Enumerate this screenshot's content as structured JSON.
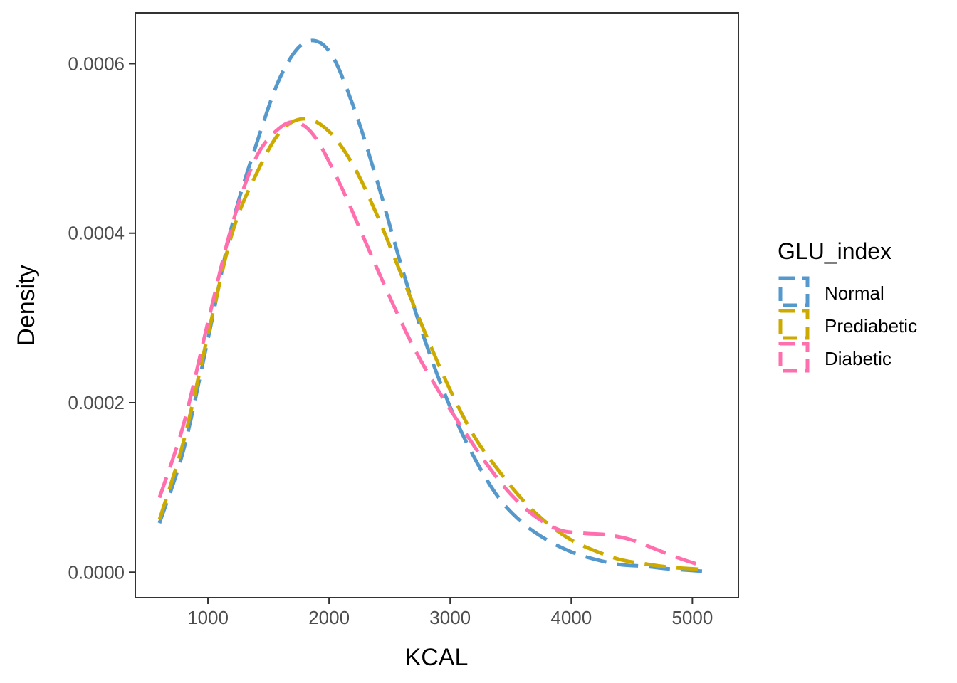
{
  "chart_data": {
    "type": "line",
    "title": "",
    "xlabel": "KCAL",
    "ylabel": "Density",
    "xlim": [
      400,
      5380
    ],
    "ylim": [
      -3e-05,
      0.00066
    ],
    "x_ticks": [
      1000,
      2000,
      3000,
      4000,
      5000
    ],
    "x_tick_labels": [
      "1000",
      "2000",
      "3000",
      "4000",
      "5000"
    ],
    "y_ticks": [
      0,
      0.0002,
      0.0004,
      0.0006
    ],
    "y_tick_labels": [
      "0.0000",
      "0.0002",
      "0.0004",
      "0.0006"
    ],
    "grid": false,
    "legend": {
      "title": "GLU_index",
      "placement": "right"
    },
    "series": [
      {
        "name": "Normal",
        "color": "#5599cc",
        "points": [
          [
            600,
            5.8e-05
          ],
          [
            800,
            0.000145
          ],
          [
            1000,
            0.000275
          ],
          [
            1200,
            0.00041
          ],
          [
            1400,
            0.000505
          ],
          [
            1600,
            0.000585
          ],
          [
            1800,
            0.000625
          ],
          [
            2000,
            0.000615
          ],
          [
            2200,
            0.00055
          ],
          [
            2400,
            0.00046
          ],
          [
            2600,
            0.00036
          ],
          [
            2800,
            0.00027
          ],
          [
            3000,
            0.000195
          ],
          [
            3200,
            0.000135
          ],
          [
            3400,
            8.8e-05
          ],
          [
            3600,
            5.8e-05
          ],
          [
            3800,
            3.8e-05
          ],
          [
            4000,
            2.4e-05
          ],
          [
            4200,
            1.5e-05
          ],
          [
            4400,
            9e-06
          ],
          [
            4600,
            7e-06
          ],
          [
            4800,
            4e-06
          ],
          [
            5000,
            2e-06
          ],
          [
            5100,
            1e-06
          ]
        ]
      },
      {
        "name": "Prediabetic",
        "color": "#ccaa00",
        "points": [
          [
            600,
            6.2e-05
          ],
          [
            800,
            0.000155
          ],
          [
            1000,
            0.00028
          ],
          [
            1200,
            0.0004
          ],
          [
            1400,
            0.00047
          ],
          [
            1600,
            0.00052
          ],
          [
            1800,
            0.000535
          ],
          [
            2000,
            0.00052
          ],
          [
            2200,
            0.00048
          ],
          [
            2400,
            0.00042
          ],
          [
            2600,
            0.00035
          ],
          [
            2800,
            0.00028
          ],
          [
            3000,
            0.000215
          ],
          [
            3200,
            0.00016
          ],
          [
            3400,
            0.00012
          ],
          [
            3600,
            8.5e-05
          ],
          [
            3800,
            5.8e-05
          ],
          [
            4000,
            3.8e-05
          ],
          [
            4200,
            2.5e-05
          ],
          [
            4400,
            1.5e-05
          ],
          [
            4600,
            1e-05
          ],
          [
            4800,
            6e-06
          ],
          [
            5000,
            4e-06
          ],
          [
            5100,
            3e-06
          ]
        ]
      },
      {
        "name": "Diabetic",
        "color": "#ff6fad",
        "points": [
          [
            600,
            8.8e-05
          ],
          [
            800,
            0.000175
          ],
          [
            1000,
            0.000295
          ],
          [
            1200,
            0.00041
          ],
          [
            1400,
            0.00049
          ],
          [
            1600,
            0.000525
          ],
          [
            1750,
            0.00053
          ],
          [
            1900,
            0.00051
          ],
          [
            2100,
            0.000455
          ],
          [
            2300,
            0.00039
          ],
          [
            2500,
            0.000325
          ],
          [
            2700,
            0.000265
          ],
          [
            2900,
            0.000215
          ],
          [
            3100,
            0.00017
          ],
          [
            3300,
            0.000128
          ],
          [
            3500,
            9.2e-05
          ],
          [
            3700,
            6.6e-05
          ],
          [
            3900,
            5e-05
          ],
          [
            4100,
            4.6e-05
          ],
          [
            4300,
            4.4e-05
          ],
          [
            4500,
            3.8e-05
          ],
          [
            4700,
            2.7e-05
          ],
          [
            4900,
            1.6e-05
          ],
          [
            5050,
            9e-06
          ]
        ]
      }
    ]
  }
}
